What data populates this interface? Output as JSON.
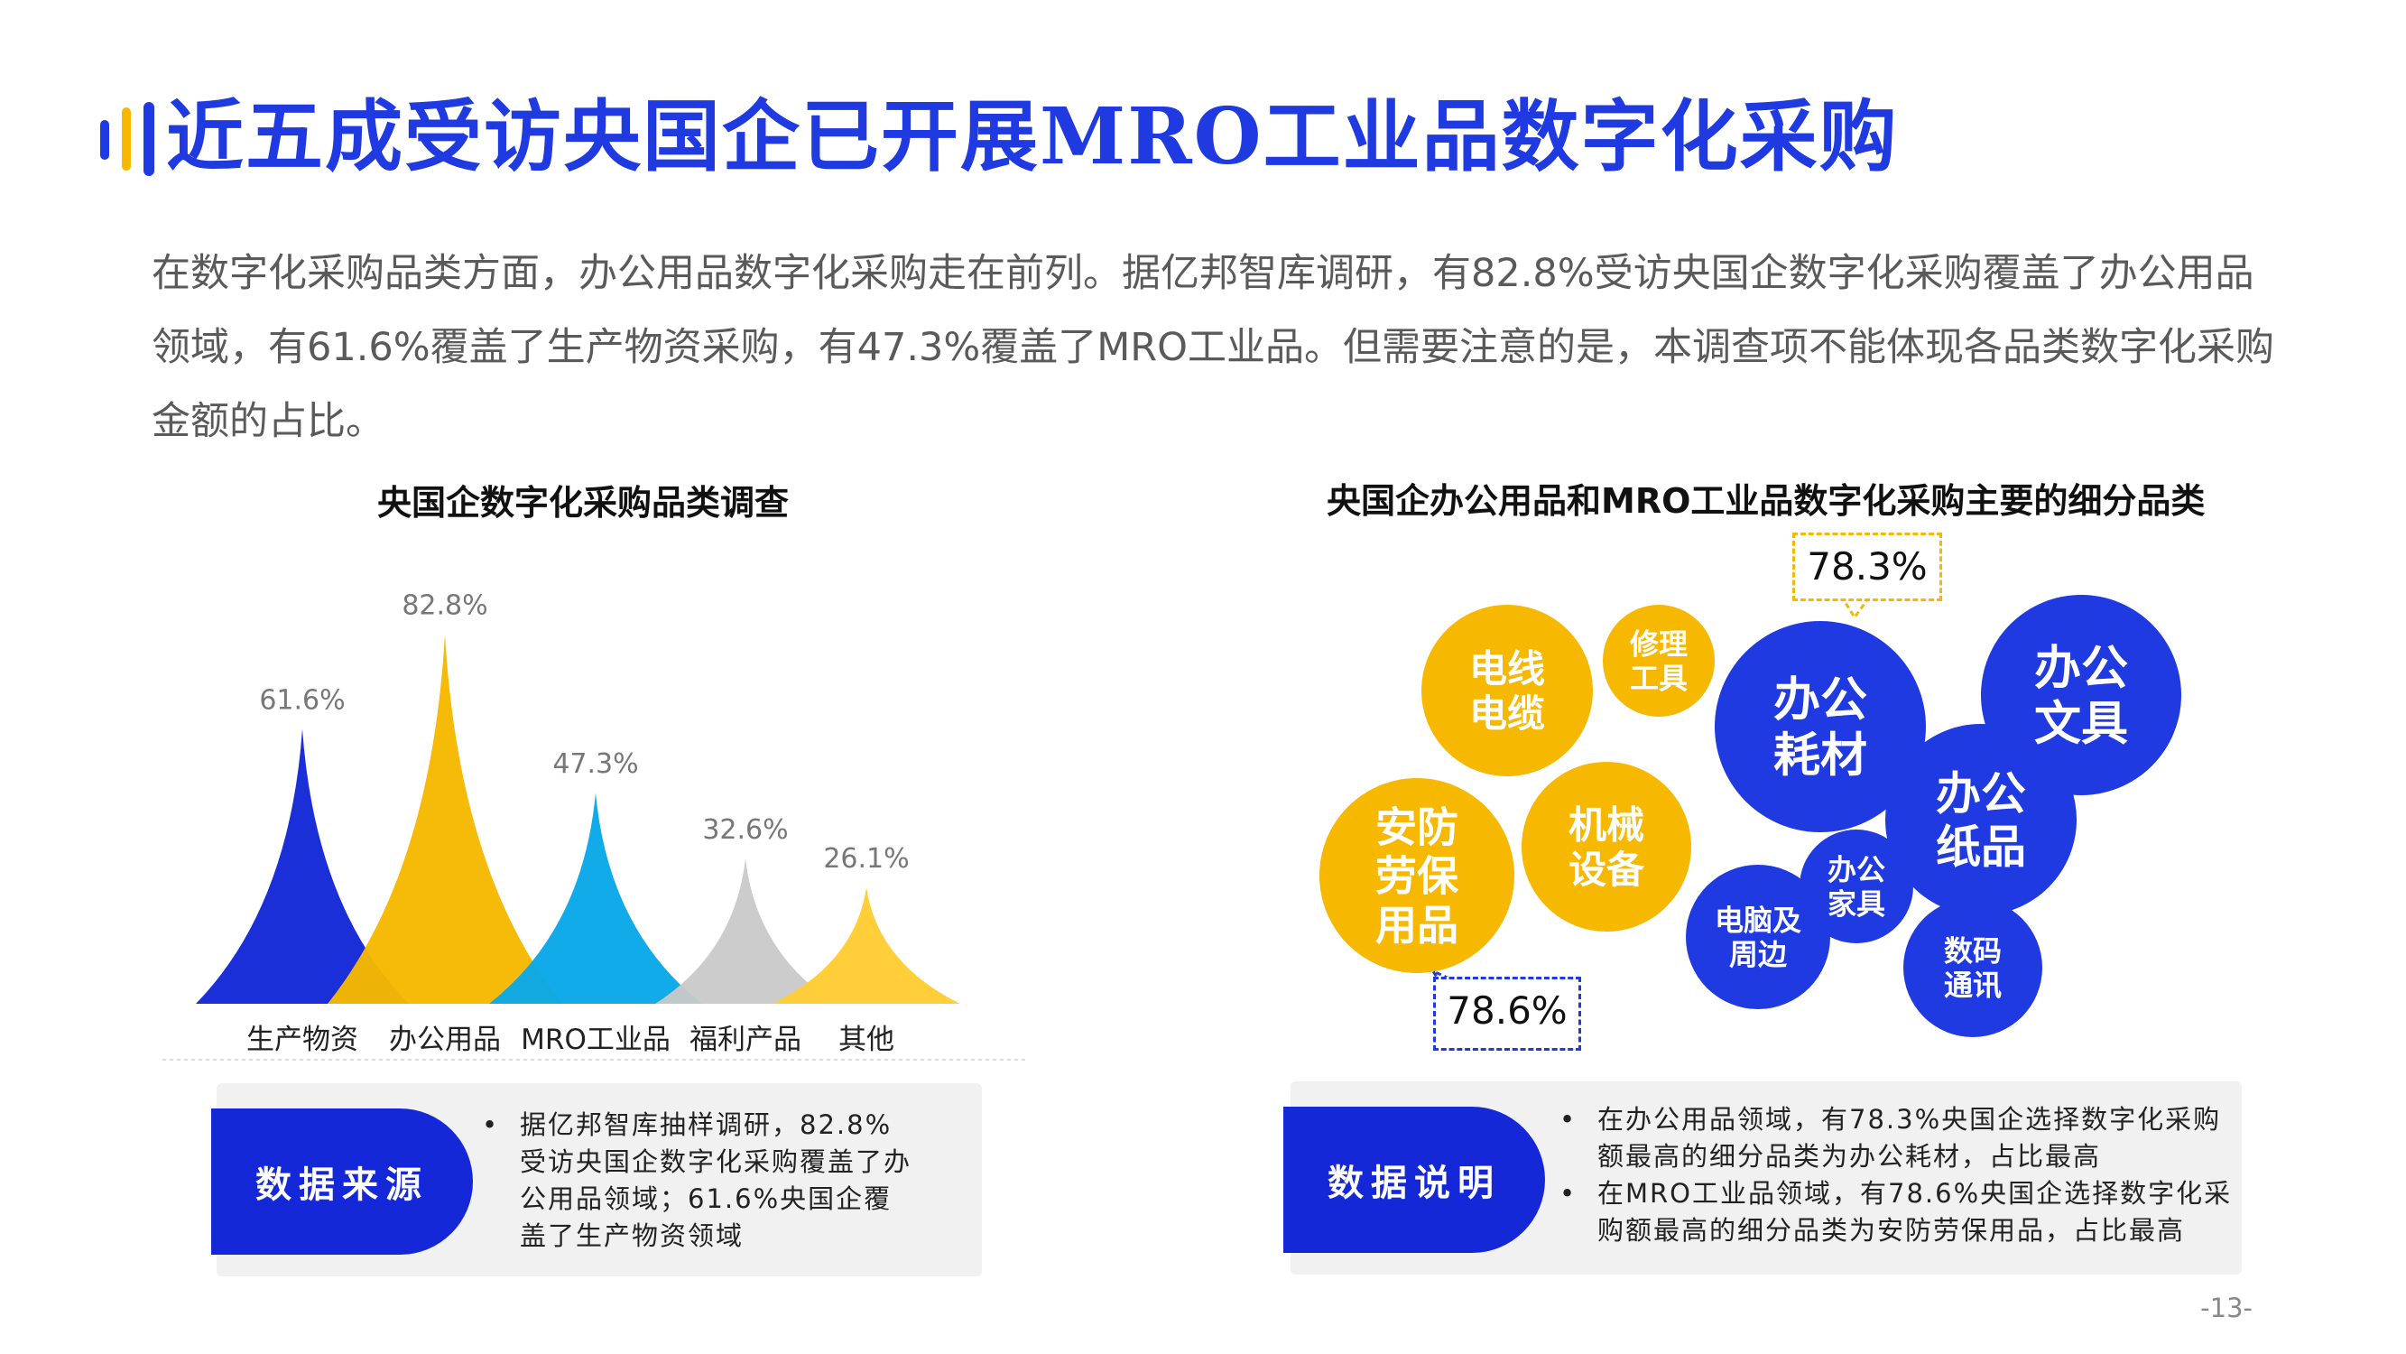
{
  "header": {
    "title": "近五成受访央国企已开展MRO工业品数字化采购",
    "accent_colors": [
      "#1f3ae0",
      "#f6b800",
      "#1f3ae0"
    ]
  },
  "intro_text": "在数字化采购品类方面，办公用品数字化采购走在前列。据亿邦智库调研，有82.8%受访央国企数字化采购覆盖了办公用品领域，有61.6%覆盖了生产物资采购，有47.3%覆盖了MRO工业品。但需要注意的是，本调查项不能体现各品类数字化采购金额的占比。",
  "chart_data": [
    {
      "type": "bar",
      "title": "央国企数字化采购品类调查",
      "categories": [
        "生产物资",
        "办公用品",
        "MRO工业品",
        "福利产品",
        "其他"
      ],
      "values": [
        61.6,
        82.8,
        47.3,
        32.6,
        26.1
      ],
      "value_labels": [
        "61.6%",
        "82.8%",
        "47.3%",
        "32.6%",
        "26.1%"
      ],
      "colors": [
        "#1428d8",
        "#f6b800",
        "#0aa8e8",
        "#c9c9c9",
        "#ffcc33"
      ],
      "ylim": [
        0,
        100
      ],
      "grid": false
    },
    {
      "type": "bubble",
      "title": "央国企办公用品和MRO工业品数字化采购主要的细分品类",
      "groups": [
        {
          "name": "MRO工业品",
          "color": "#f6b800"
        },
        {
          "name": "办公用品",
          "color": "#1f3ae0"
        }
      ],
      "items": [
        {
          "label": [
            "电线",
            "电缆"
          ],
          "group": "MRO工业品"
        },
        {
          "label": [
            "修理",
            "工具"
          ],
          "group": "MRO工业品"
        },
        {
          "label": [
            "安防",
            "劳保",
            "用品"
          ],
          "group": "MRO工业品"
        },
        {
          "label": [
            "机械",
            "设备"
          ],
          "group": "MRO工业品"
        },
        {
          "label": [
            "办公",
            "耗材"
          ],
          "group": "办公用品"
        },
        {
          "label": [
            "办公",
            "文具"
          ],
          "group": "办公用品"
        },
        {
          "label": [
            "办公",
            "纸品"
          ],
          "group": "办公用品"
        },
        {
          "label": [
            "办公",
            "家具"
          ],
          "group": "办公用品"
        },
        {
          "label": [
            "电脑及",
            "周边"
          ],
          "group": "办公用品"
        },
        {
          "label": [
            "数码",
            "通讯"
          ],
          "group": "办公用品"
        }
      ],
      "callouts": [
        {
          "text": "78.3%",
          "target": "办公耗材"
        },
        {
          "text": "78.6%",
          "target": "安防劳保用品"
        }
      ]
    }
  ],
  "notes": [
    {
      "badge": "数据来源",
      "lines": [
        "据亿邦智库抽样调研，82.8%受访央国企数字化采购覆盖了办公用品领域；61.6%央国企覆盖了生产物资领域"
      ]
    },
    {
      "badge": "数据说明",
      "lines": [
        "在办公用品领域，有78.3%央国企选择数字化采购额最高的细分品类为办公耗材，占比最高",
        "在MRO工业品领域，有78.6%央国企选择数字化采购额最高的细分品类为安防劳保用品，占比最高"
      ]
    }
  ],
  "page_number": "-13-"
}
